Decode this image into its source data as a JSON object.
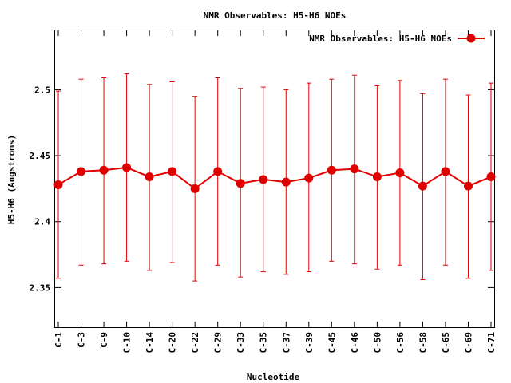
{
  "chart_data": {
    "type": "line",
    "title": "NMR Observables: H5-H6 NOEs",
    "xlabel": "Nucleotide",
    "ylabel": "H5-H6 (Angstroms)",
    "ylim": [
      2.32,
      2.545
    ],
    "yticks": [
      {
        "value": 2.35,
        "label": "2.35"
      },
      {
        "value": 2.4,
        "label": "2.4"
      },
      {
        "value": 2.45,
        "label": "2.45"
      },
      {
        "value": 2.5,
        "label": "2.5"
      }
    ],
    "categories": [
      "C-1",
      "C-3",
      "C-9",
      "C-10",
      "C-14",
      "C-20",
      "C-22",
      "C-29",
      "C-33",
      "C-35",
      "C-37",
      "C-39",
      "C-45",
      "C-46",
      "C-50",
      "C-56",
      "C-58",
      "C-65",
      "C-69",
      "C-71"
    ],
    "grid": false,
    "legend": "top-right",
    "color": "#e00000",
    "series": [
      {
        "name": "NMR Observables: H5-H6 NOEs",
        "values": [
          2.428,
          2.438,
          2.439,
          2.441,
          2.434,
          2.438,
          2.425,
          2.438,
          2.429,
          2.432,
          2.43,
          2.433,
          2.439,
          2.44,
          2.434,
          2.437,
          2.427,
          2.438,
          2.427,
          2.434
        ],
        "error_low": [
          2.357,
          2.367,
          2.368,
          2.37,
          2.363,
          2.369,
          2.355,
          2.367,
          2.358,
          2.362,
          2.36,
          2.362,
          2.37,
          2.368,
          2.364,
          2.367,
          2.356,
          2.367,
          2.357,
          2.363
        ],
        "error_high": [
          2.499,
          2.508,
          2.509,
          2.512,
          2.504,
          2.506,
          2.495,
          2.509,
          2.501,
          2.502,
          2.5,
          2.505,
          2.508,
          2.511,
          2.503,
          2.507,
          2.497,
          2.508,
          2.496,
          2.505
        ]
      }
    ]
  }
}
